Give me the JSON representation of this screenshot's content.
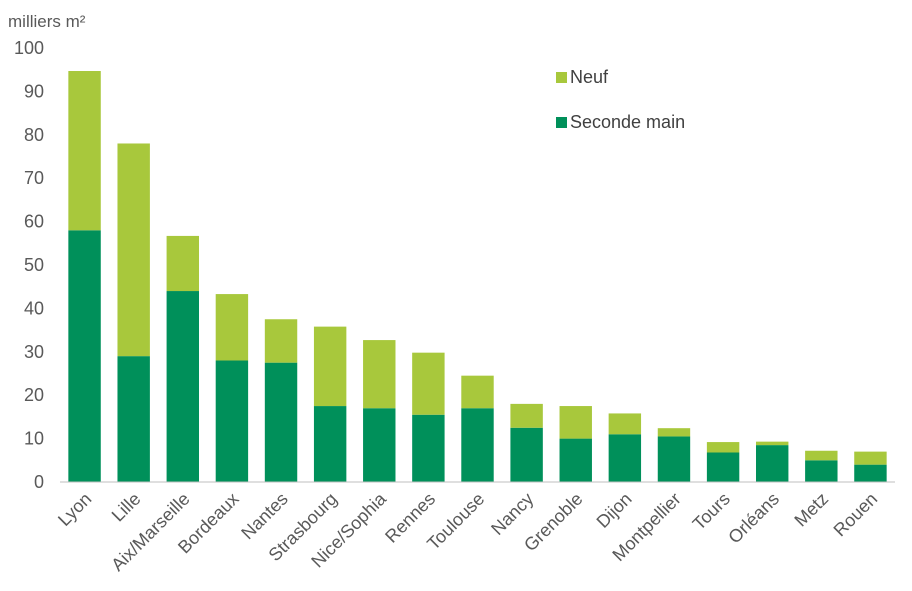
{
  "chart_data": {
    "type": "bar",
    "stacked": true,
    "ylabel": "milliers m²",
    "ylim": [
      0,
      100
    ],
    "yticks": [
      0,
      10,
      20,
      30,
      40,
      50,
      60,
      70,
      80,
      90,
      100
    ],
    "grid": false,
    "legend_position": "top-right",
    "categories": [
      "Lyon",
      "Lille",
      "Aix/Marseille",
      "Bordeaux",
      "Nantes",
      "Strasbourg",
      "Nice/Sophia",
      "Rennes",
      "Toulouse",
      "Nancy",
      "Grenoble",
      "Dijon",
      "Montpellier",
      "Tours",
      "Orléans",
      "Metz",
      "Rouen"
    ],
    "series": [
      {
        "name": "Seconde main",
        "color": "#00905a",
        "values": [
          58,
          29,
          44,
          28,
          27.5,
          17.5,
          17,
          15.5,
          17,
          12.5,
          10,
          11,
          10.5,
          6.8,
          8.5,
          5,
          4
        ]
      },
      {
        "name": "Neuf",
        "color": "#a8c83c",
        "values": [
          36.7,
          49,
          12.7,
          15.3,
          10,
          18.3,
          15.7,
          14.3,
          7.5,
          5.5,
          7.5,
          4.8,
          1.9,
          2.4,
          0.8,
          2.2,
          3
        ]
      }
    ],
    "legend_order": [
      "Neuf",
      "Seconde main"
    ]
  }
}
